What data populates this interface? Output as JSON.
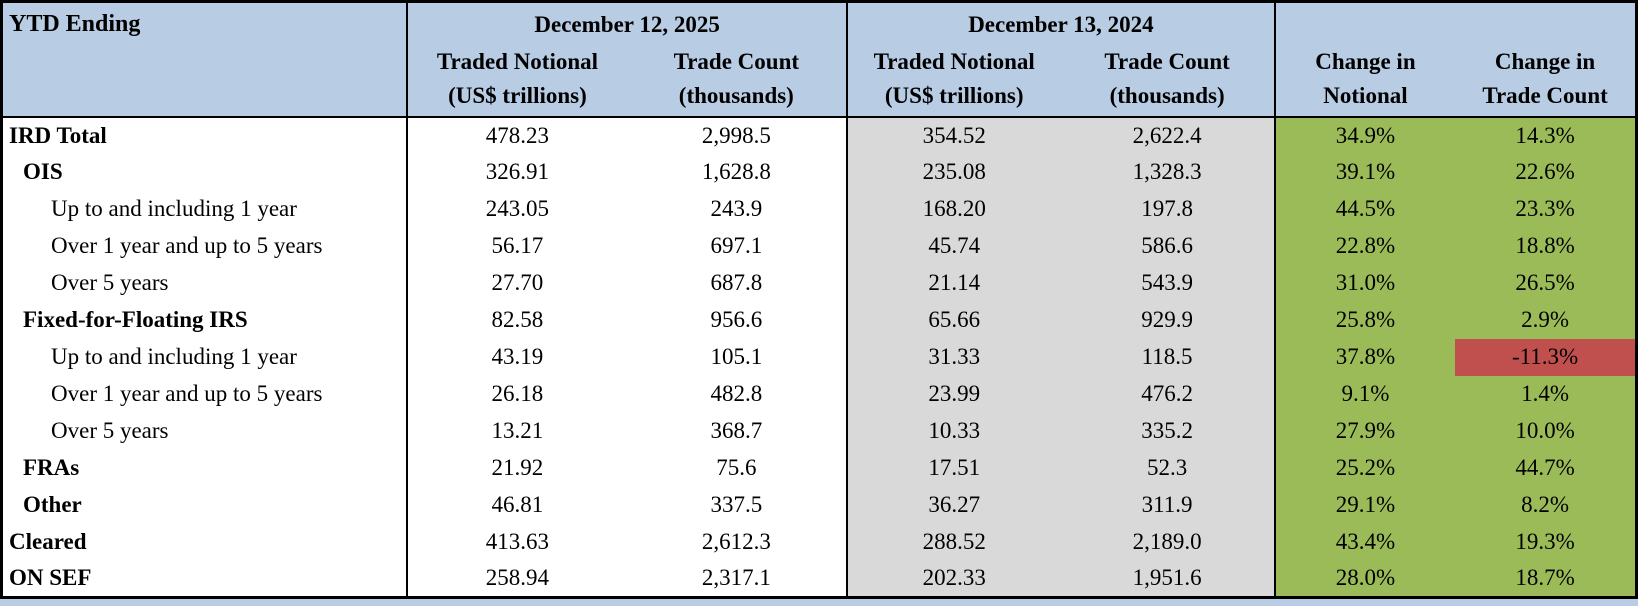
{
  "colors": {
    "header_bg": "#b8cce4",
    "prior_year_bg": "#d9d9d9",
    "change_bg": "#9bbb59",
    "negative_bg": "#c0504d",
    "text": "#000000",
    "border": "#000000"
  },
  "chart_data": {
    "type": "table",
    "corner_label": "YTD Ending",
    "groups": {
      "g2025": "December 12, 2025",
      "g2024": "December 13, 2024"
    },
    "headers": {
      "notional_line1": "Traded Notional",
      "notional_line2": "(US$ trillions)",
      "count_line1": "Trade Count",
      "count_line2": "(thousands)",
      "chg_notional_line1": "Change in",
      "chg_notional_line2": "Notional",
      "chg_count_line1": "Change in",
      "chg_count_line2": "Trade Count"
    },
    "rows": [
      {
        "label": "IRD Total",
        "indent": 0,
        "bold": true,
        "n2025": "478.23",
        "c2025": "2,998.5",
        "n2024": "354.52",
        "c2024": "2,622.4",
        "chg_n": "34.9%",
        "chg_c": "14.3%",
        "chg_c_negative": false
      },
      {
        "label": "OIS",
        "indent": 1,
        "bold": true,
        "n2025": "326.91",
        "c2025": "1,628.8",
        "n2024": "235.08",
        "c2024": "1,328.3",
        "chg_n": "39.1%",
        "chg_c": "22.6%",
        "chg_c_negative": false
      },
      {
        "label": "Up to and including 1 year",
        "indent": 2,
        "bold": false,
        "n2025": "243.05",
        "c2025": "243.9",
        "n2024": "168.20",
        "c2024": "197.8",
        "chg_n": "44.5%",
        "chg_c": "23.3%",
        "chg_c_negative": false
      },
      {
        "label": "Over 1 year and up to 5 years",
        "indent": 2,
        "bold": false,
        "n2025": "56.17",
        "c2025": "697.1",
        "n2024": "45.74",
        "c2024": "586.6",
        "chg_n": "22.8%",
        "chg_c": "18.8%",
        "chg_c_negative": false
      },
      {
        "label": "Over 5 years",
        "indent": 2,
        "bold": false,
        "n2025": "27.70",
        "c2025": "687.8",
        "n2024": "21.14",
        "c2024": "543.9",
        "chg_n": "31.0%",
        "chg_c": "26.5%",
        "chg_c_negative": false
      },
      {
        "label": "Fixed-for-Floating IRS",
        "indent": 1,
        "bold": true,
        "n2025": "82.58",
        "c2025": "956.6",
        "n2024": "65.66",
        "c2024": "929.9",
        "chg_n": "25.8%",
        "chg_c": "2.9%",
        "chg_c_negative": false
      },
      {
        "label": "Up to and including 1 year",
        "indent": 2,
        "bold": false,
        "n2025": "43.19",
        "c2025": "105.1",
        "n2024": "31.33",
        "c2024": "118.5",
        "chg_n": "37.8%",
        "chg_c": "-11.3%",
        "chg_c_negative": true
      },
      {
        "label": "Over 1 year and up to 5 years",
        "indent": 2,
        "bold": false,
        "n2025": "26.18",
        "c2025": "482.8",
        "n2024": "23.99",
        "c2024": "476.2",
        "chg_n": "9.1%",
        "chg_c": "1.4%",
        "chg_c_negative": false
      },
      {
        "label": "Over 5 years",
        "indent": 2,
        "bold": false,
        "n2025": "13.21",
        "c2025": "368.7",
        "n2024": "10.33",
        "c2024": "335.2",
        "chg_n": "27.9%",
        "chg_c": "10.0%",
        "chg_c_negative": false
      },
      {
        "label": "FRAs",
        "indent": 1,
        "bold": true,
        "n2025": "21.92",
        "c2025": "75.6",
        "n2024": "17.51",
        "c2024": "52.3",
        "chg_n": "25.2%",
        "chg_c": "44.7%",
        "chg_c_negative": false
      },
      {
        "label": "Other",
        "indent": 1,
        "bold": true,
        "n2025": "46.81",
        "c2025": "337.5",
        "n2024": "36.27",
        "c2024": "311.9",
        "chg_n": "29.1%",
        "chg_c": "8.2%",
        "chg_c_negative": false
      },
      {
        "label": "Cleared",
        "indent": 0,
        "bold": true,
        "n2025": "413.63",
        "c2025": "2,612.3",
        "n2024": "288.52",
        "c2024": "2,189.0",
        "chg_n": "43.4%",
        "chg_c": "19.3%",
        "chg_c_negative": false
      },
      {
        "label": "ON SEF",
        "indent": 0,
        "bold": true,
        "n2025": "258.94",
        "c2025": "2,317.1",
        "n2024": "202.33",
        "c2024": "1,951.6",
        "chg_n": "28.0%",
        "chg_c": "18.7%",
        "chg_c_negative": false
      }
    ]
  }
}
